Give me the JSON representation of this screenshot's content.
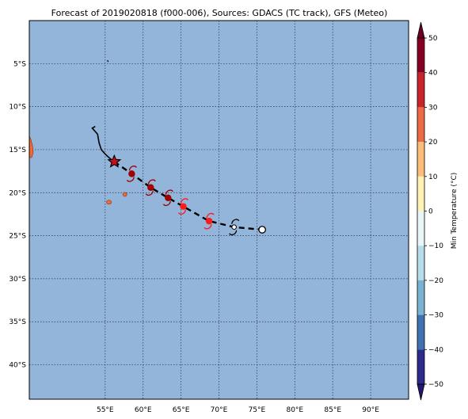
{
  "title": "Forecast of 2019020818 (f000-006), Sources: GDACS (TC track), GFS (Meteo)",
  "map": {
    "ocean_color": "#93b5da",
    "land_color": "#f06a3a",
    "grid_style": "dotted",
    "lon_range": [
      45,
      95
    ],
    "lat_range": [
      -44,
      0
    ],
    "lon_ticks": [
      {
        "value": 55,
        "label": "55°E"
      },
      {
        "value": 60,
        "label": "60°E"
      },
      {
        "value": 65,
        "label": "65°E"
      },
      {
        "value": 70,
        "label": "70°E"
      },
      {
        "value": 75,
        "label": "75°E"
      },
      {
        "value": 80,
        "label": "80°E"
      },
      {
        "value": 85,
        "label": "85°E"
      },
      {
        "value": 90,
        "label": "90°E"
      }
    ],
    "lat_ticks": [
      {
        "value": -5,
        "label": "5°S"
      },
      {
        "value": -10,
        "label": "10°S"
      },
      {
        "value": -15,
        "label": "15°S"
      },
      {
        "value": -20,
        "label": "20°S"
      },
      {
        "value": -25,
        "label": "25°S"
      },
      {
        "value": -30,
        "label": "30°S"
      },
      {
        "value": -35,
        "label": "35°S"
      },
      {
        "value": -40,
        "label": "40°S"
      }
    ]
  },
  "track": {
    "past_track": [
      [
        53.7,
        -12.3
      ],
      [
        53.3,
        -12.5
      ],
      [
        54.0,
        -13.2
      ],
      [
        54.2,
        -14.2
      ],
      [
        54.5,
        -15.0
      ],
      [
        55.0,
        -15.5
      ],
      [
        55.6,
        -16.0
      ],
      [
        56.2,
        -16.4
      ]
    ],
    "forecast_track": [
      [
        56.2,
        -16.4
      ],
      [
        58.5,
        -17.8
      ],
      [
        61.0,
        -19.4
      ],
      [
        63.3,
        -20.6
      ],
      [
        65.3,
        -21.6
      ],
      [
        68.7,
        -23.3
      ],
      [
        72.0,
        -24.0
      ],
      [
        75.7,
        -24.3
      ]
    ],
    "current_position": [
      56.2,
      -16.4
    ],
    "forecast_points": [
      {
        "lon": 58.5,
        "lat": -17.8,
        "color": "#a00000",
        "symbol": "cyclone"
      },
      {
        "lon": 61.0,
        "lat": -19.4,
        "color": "#a00000",
        "symbol": "cyclone"
      },
      {
        "lon": 63.3,
        "lat": -20.6,
        "color": "#a00000",
        "symbol": "cyclone"
      },
      {
        "lon": 65.3,
        "lat": -21.6,
        "color": "#ff1a1a",
        "symbol": "cyclone"
      },
      {
        "lon": 68.7,
        "lat": -23.3,
        "color": "#ff1a1a",
        "symbol": "cyclone"
      },
      {
        "lon": 72.0,
        "lat": -24.0,
        "color": "#ffffff",
        "symbol": "cyclone"
      },
      {
        "lon": 75.7,
        "lat": -24.3,
        "color": "#ffffff",
        "symbol": "circle"
      }
    ]
  },
  "colorbar": {
    "label": "Min Temperature (°C)",
    "ticks": [
      {
        "value": 50,
        "label": "50"
      },
      {
        "value": 40,
        "label": "40"
      },
      {
        "value": 30,
        "label": "30"
      },
      {
        "value": 20,
        "label": "20"
      },
      {
        "value": 10,
        "label": "10"
      },
      {
        "value": 0,
        "label": "0"
      },
      {
        "value": -10,
        "label": "−10"
      },
      {
        "value": -20,
        "label": "−20"
      },
      {
        "value": -30,
        "label": "−30"
      },
      {
        "value": -40,
        "label": "−40"
      },
      {
        "value": -50,
        "label": "−50"
      }
    ],
    "segments": [
      {
        "from": 40,
        "to": 50,
        "color": "#870024"
      },
      {
        "from": 30,
        "to": 40,
        "color": "#c8242a"
      },
      {
        "from": 20,
        "to": 30,
        "color": "#ee6a45"
      },
      {
        "from": 10,
        "to": 20,
        "color": "#fbbd78"
      },
      {
        "from": 0,
        "to": 10,
        "color": "#fff2b3"
      },
      {
        "from": -10,
        "to": 0,
        "color": "#e8f6f8"
      },
      {
        "from": -20,
        "to": -10,
        "color": "#b6ddea"
      },
      {
        "from": -30,
        "to": -20,
        "color": "#7ab2d3"
      },
      {
        "from": -40,
        "to": -30,
        "color": "#3f72b1"
      },
      {
        "from": -50,
        "to": -40,
        "color": "#2c2a8c"
      }
    ],
    "extend_top_color": "#6a0025",
    "extend_bottom_color": "#21196e"
  }
}
